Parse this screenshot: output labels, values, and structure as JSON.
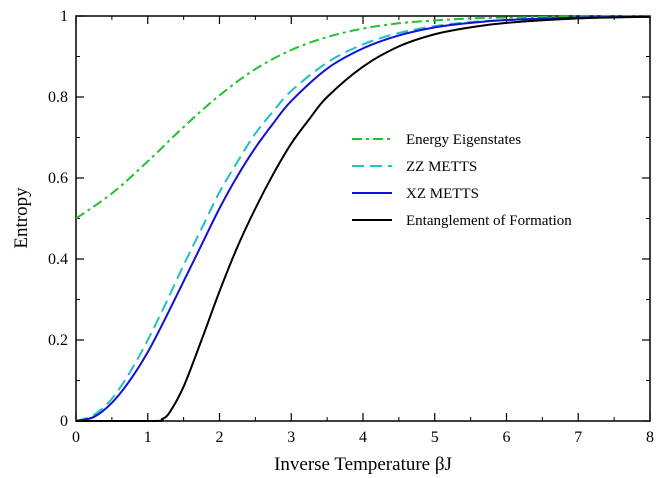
{
  "chart_data": {
    "type": "line",
    "xlabel": "Inverse Temperature  βJ",
    "ylabel": "Entropy",
    "xlim": [
      0,
      8
    ],
    "ylim": [
      0,
      1
    ],
    "xticks": [
      0,
      1,
      2,
      3,
      4,
      5,
      6,
      7,
      8
    ],
    "yticks": [
      0,
      0.2,
      0.4,
      0.6,
      0.8,
      1
    ],
    "xtick_labels": [
      "0",
      "1",
      "2",
      "3",
      "4",
      "5",
      "6",
      "7",
      "8"
    ],
    "ytick_labels": [
      "0",
      "0.2",
      "0.4",
      "0.6",
      "0.8",
      "1"
    ],
    "grid": false,
    "legend_position": "center-right",
    "series": [
      {
        "name": "Energy Eigenstates",
        "color": "#22c22e",
        "style": "dashdot",
        "x": [
          0,
          0.5,
          1,
          1.5,
          2,
          2.5,
          3,
          3.5,
          4,
          4.5,
          5,
          5.5,
          6,
          7,
          8
        ],
        "y": [
          0.5,
          0.562,
          0.641,
          0.726,
          0.804,
          0.869,
          0.916,
          0.948,
          0.969,
          0.982,
          0.989,
          0.994,
          0.996,
          0.999,
          1.0
        ]
      },
      {
        "name": "ZZ METTS",
        "color": "#20c0c8",
        "style": "dashed",
        "x": [
          0,
          0.25,
          0.5,
          0.75,
          1,
          1.25,
          1.5,
          1.75,
          2,
          2.25,
          2.5,
          2.75,
          3,
          3.5,
          4,
          4.5,
          5,
          5.5,
          6,
          7,
          8
        ],
        "y": [
          0.0,
          0.015,
          0.055,
          0.12,
          0.2,
          0.29,
          0.385,
          0.475,
          0.565,
          0.64,
          0.71,
          0.765,
          0.815,
          0.885,
          0.93,
          0.958,
          0.975,
          0.985,
          0.99,
          0.996,
          0.998
        ]
      },
      {
        "name": "XZ METTS",
        "color": "#1010d8",
        "style": "solid",
        "x": [
          0,
          0.25,
          0.5,
          0.75,
          1,
          1.25,
          1.5,
          1.75,
          2,
          2.25,
          2.5,
          2.75,
          3,
          3.5,
          4,
          4.5,
          5,
          5.5,
          6,
          7,
          8
        ],
        "y": [
          0.0,
          0.01,
          0.045,
          0.1,
          0.17,
          0.255,
          0.345,
          0.435,
          0.525,
          0.605,
          0.675,
          0.735,
          0.79,
          0.87,
          0.92,
          0.952,
          0.972,
          0.983,
          0.99,
          0.996,
          0.998
        ]
      },
      {
        "name": "Entanglement of Formation",
        "color": "#000000",
        "style": "solid",
        "x": [
          0,
          1.1,
          1.2,
          1.3,
          1.5,
          1.75,
          2,
          2.25,
          2.5,
          2.75,
          3,
          3.25,
          3.5,
          4,
          4.5,
          5,
          5.5,
          6,
          7,
          8
        ],
        "y": [
          0.0,
          0.0,
          0.005,
          0.02,
          0.085,
          0.2,
          0.32,
          0.43,
          0.525,
          0.61,
          0.685,
          0.745,
          0.8,
          0.875,
          0.925,
          0.955,
          0.972,
          0.983,
          0.994,
          0.998
        ]
      }
    ]
  }
}
